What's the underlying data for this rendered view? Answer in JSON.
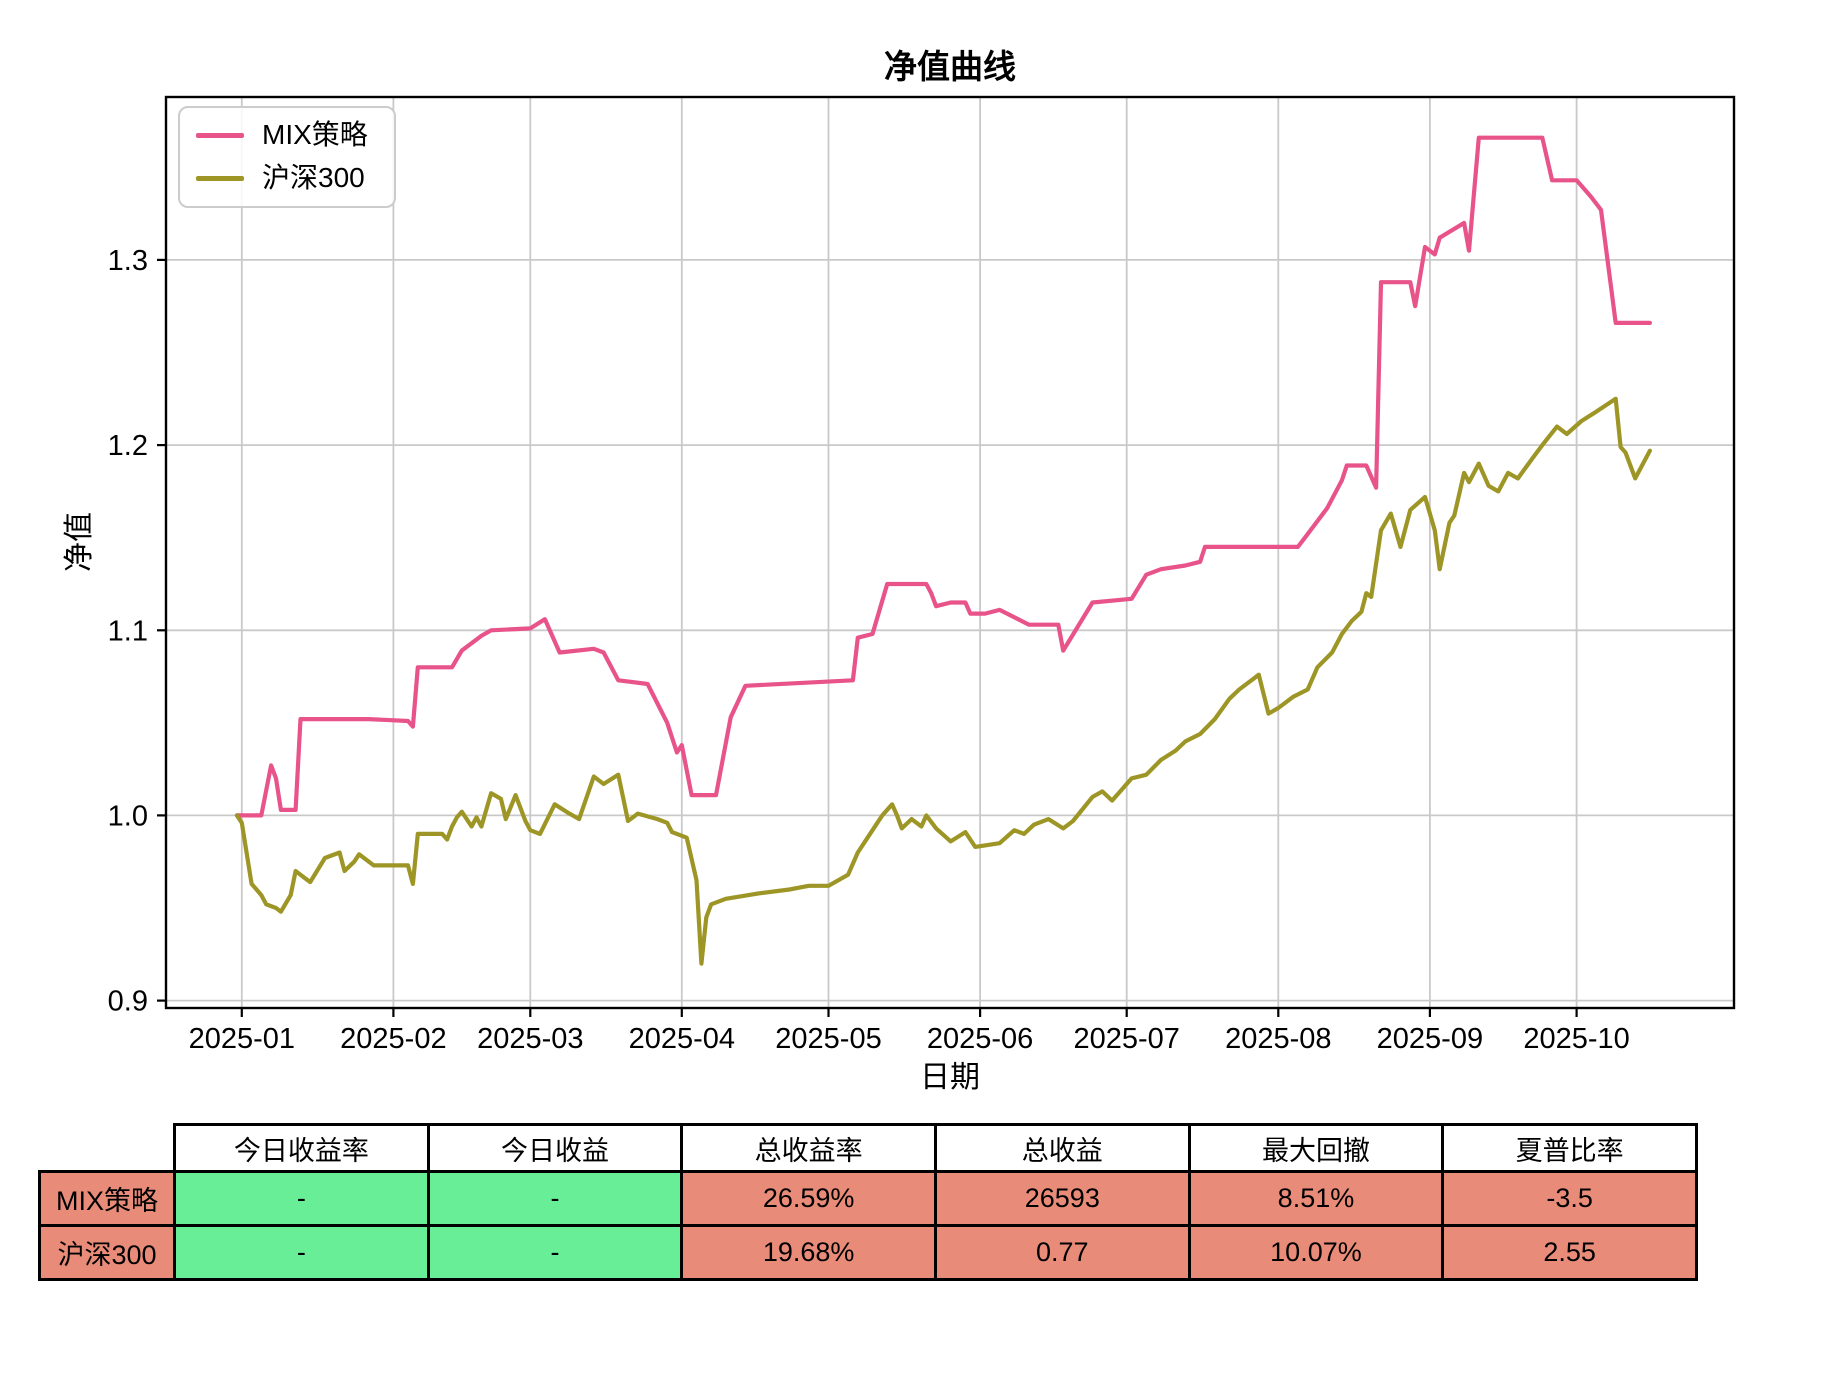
{
  "chart": {
    "title": "净值曲线",
    "xlabel": "日期",
    "ylabel": "净值"
  },
  "chart_data": {
    "type": "line",
    "title": "净值曲线",
    "xlabel": "日期",
    "ylabel": "净值",
    "grid": true,
    "legend_position": "upper left",
    "x_unit": "days since 2024-12-31",
    "xlim": [
      -14.5,
      306.2
    ],
    "ylim": [
      0.896,
      1.388
    ],
    "y_ticks": [
      0.9,
      1.0,
      1.1,
      1.2,
      1.3
    ],
    "x_ticks": {
      "days": [
        1,
        32,
        60,
        91,
        121,
        152,
        182,
        213,
        244,
        274
      ],
      "labels": [
        "2025-01",
        "2025-02",
        "2025-03",
        "2025-04",
        "2025-05",
        "2025-06",
        "2025-07",
        "2025-08",
        "2025-09",
        "2025-10"
      ]
    },
    "series": [
      {
        "name": "MIX策略",
        "color": "#e8538a",
        "points": [
          [
            0,
            1.0
          ],
          [
            5,
            1.0
          ],
          [
            7,
            1.027
          ],
          [
            8,
            1.02
          ],
          [
            9,
            1.003
          ],
          [
            12,
            1.003
          ],
          [
            13,
            1.052
          ],
          [
            27,
            1.052
          ],
          [
            35,
            1.051
          ],
          [
            36,
            1.048
          ],
          [
            37,
            1.08
          ],
          [
            44,
            1.08
          ],
          [
            46,
            1.089
          ],
          [
            50,
            1.097
          ],
          [
            52,
            1.1
          ],
          [
            60,
            1.101
          ],
          [
            63,
            1.106
          ],
          [
            66,
            1.088
          ],
          [
            73,
            1.09
          ],
          [
            75,
            1.088
          ],
          [
            78,
            1.073
          ],
          [
            84,
            1.071
          ],
          [
            88,
            1.05
          ],
          [
            90,
            1.034
          ],
          [
            91,
            1.038
          ],
          [
            93,
            1.011
          ],
          [
            98,
            1.011
          ],
          [
            101,
            1.053
          ],
          [
            104,
            1.07
          ],
          [
            126,
            1.073
          ],
          [
            127,
            1.096
          ],
          [
            130,
            1.098
          ],
          [
            133,
            1.125
          ],
          [
            141,
            1.125
          ],
          [
            142,
            1.12
          ],
          [
            143,
            1.113
          ],
          [
            146,
            1.115
          ],
          [
            149,
            1.115
          ],
          [
            150,
            1.109
          ],
          [
            153,
            1.109
          ],
          [
            156,
            1.111
          ],
          [
            162,
            1.103
          ],
          [
            168,
            1.103
          ],
          [
            169,
            1.089
          ],
          [
            175,
            1.115
          ],
          [
            183,
            1.117
          ],
          [
            186,
            1.13
          ],
          [
            189,
            1.133
          ],
          [
            194,
            1.135
          ],
          [
            197,
            1.137
          ],
          [
            198,
            1.145
          ],
          [
            217,
            1.145
          ],
          [
            219,
            1.152
          ],
          [
            223,
            1.166
          ],
          [
            226,
            1.181
          ],
          [
            227,
            1.189
          ],
          [
            231,
            1.189
          ],
          [
            233,
            1.177
          ],
          [
            234,
            1.288
          ],
          [
            240,
            1.288
          ],
          [
            241,
            1.275
          ],
          [
            243,
            1.307
          ],
          [
            245,
            1.303
          ],
          [
            246,
            1.312
          ],
          [
            251,
            1.32
          ],
          [
            252,
            1.305
          ],
          [
            254,
            1.366
          ],
          [
            267,
            1.366
          ],
          [
            269,
            1.343
          ],
          [
            274,
            1.343
          ],
          [
            277,
            1.334
          ],
          [
            279,
            1.327
          ],
          [
            282,
            1.266
          ],
          [
            289,
            1.266
          ]
        ]
      },
      {
        "name": "沪深300",
        "color": "#9d9627",
        "points": [
          [
            0,
            1.0
          ],
          [
            1,
            0.996
          ],
          [
            3,
            0.963
          ],
          [
            4,
            0.96
          ],
          [
            5,
            0.957
          ],
          [
            6,
            0.952
          ],
          [
            8,
            0.95
          ],
          [
            9,
            0.948
          ],
          [
            11,
            0.957
          ],
          [
            12,
            0.97
          ],
          [
            14,
            0.966
          ],
          [
            15,
            0.964
          ],
          [
            18,
            0.977
          ],
          [
            21,
            0.98
          ],
          [
            22,
            0.97
          ],
          [
            24,
            0.975
          ],
          [
            25,
            0.979
          ],
          [
            28,
            0.973
          ],
          [
            35,
            0.973
          ],
          [
            36,
            0.963
          ],
          [
            37,
            0.99
          ],
          [
            42,
            0.99
          ],
          [
            43,
            0.987
          ],
          [
            44,
            0.994
          ],
          [
            45,
            0.999
          ],
          [
            46,
            1.002
          ],
          [
            48,
            0.994
          ],
          [
            49,
            0.999
          ],
          [
            50,
            0.994
          ],
          [
            52,
            1.012
          ],
          [
            54,
            1.009
          ],
          [
            55,
            0.998
          ],
          [
            57,
            1.011
          ],
          [
            59,
            0.997
          ],
          [
            60,
            0.992
          ],
          [
            62,
            0.99
          ],
          [
            65,
            1.006
          ],
          [
            68,
            1.001
          ],
          [
            70,
            0.998
          ],
          [
            73,
            1.021
          ],
          [
            75,
            1.017
          ],
          [
            78,
            1.022
          ],
          [
            80,
            0.997
          ],
          [
            82,
            1.001
          ],
          [
            86,
            0.998
          ],
          [
            88,
            0.996
          ],
          [
            89,
            0.991
          ],
          [
            92,
            0.988
          ],
          [
            94,
            0.965
          ],
          [
            95,
            0.92
          ],
          [
            96,
            0.945
          ],
          [
            97,
            0.952
          ],
          [
            100,
            0.955
          ],
          [
            107,
            0.958
          ],
          [
            113,
            0.96
          ],
          [
            117,
            0.962
          ],
          [
            121,
            0.962
          ],
          [
            125,
            0.968
          ],
          [
            127,
            0.98
          ],
          [
            130,
            0.992
          ],
          [
            132,
            1.0
          ],
          [
            134,
            1.006
          ],
          [
            135,
            1.0
          ],
          [
            136,
            0.993
          ],
          [
            138,
            0.998
          ],
          [
            140,
            0.994
          ],
          [
            141,
            1.0
          ],
          [
            143,
            0.993
          ],
          [
            146,
            0.986
          ],
          [
            149,
            0.991
          ],
          [
            151,
            0.983
          ],
          [
            156,
            0.985
          ],
          [
            159,
            0.992
          ],
          [
            161,
            0.99
          ],
          [
            163,
            0.995
          ],
          [
            166,
            0.998
          ],
          [
            169,
            0.993
          ],
          [
            171,
            0.997
          ],
          [
            175,
            1.01
          ],
          [
            177,
            1.013
          ],
          [
            179,
            1.008
          ],
          [
            183,
            1.02
          ],
          [
            186,
            1.022
          ],
          [
            189,
            1.03
          ],
          [
            192,
            1.035
          ],
          [
            194,
            1.04
          ],
          [
            197,
            1.044
          ],
          [
            200,
            1.052
          ],
          [
            203,
            1.063
          ],
          [
            205,
            1.068
          ],
          [
            208,
            1.074
          ],
          [
            209,
            1.076
          ],
          [
            211,
            1.055
          ],
          [
            213,
            1.058
          ],
          [
            216,
            1.064
          ],
          [
            219,
            1.068
          ],
          [
            221,
            1.08
          ],
          [
            224,
            1.088
          ],
          [
            226,
            1.098
          ],
          [
            228,
            1.105
          ],
          [
            230,
            1.11
          ],
          [
            231,
            1.12
          ],
          [
            232,
            1.118
          ],
          [
            234,
            1.154
          ],
          [
            236,
            1.163
          ],
          [
            238,
            1.145
          ],
          [
            240,
            1.165
          ],
          [
            243,
            1.172
          ],
          [
            245,
            1.154
          ],
          [
            246,
            1.133
          ],
          [
            248,
            1.158
          ],
          [
            249,
            1.162
          ],
          [
            251,
            1.185
          ],
          [
            252,
            1.18
          ],
          [
            254,
            1.19
          ],
          [
            256,
            1.178
          ],
          [
            258,
            1.175
          ],
          [
            260,
            1.185
          ],
          [
            262,
            1.182
          ],
          [
            265,
            1.193
          ],
          [
            267,
            1.2
          ],
          [
            270,
            1.21
          ],
          [
            272,
            1.206
          ],
          [
            275,
            1.213
          ],
          [
            278,
            1.218
          ],
          [
            282,
            1.225
          ],
          [
            283,
            1.199
          ],
          [
            284,
            1.196
          ],
          [
            286,
            1.182
          ],
          [
            289,
            1.197
          ]
        ]
      }
    ]
  },
  "table": {
    "headers": [
      "今日收益率",
      "今日收益",
      "总收益率",
      "总收益",
      "最大回撤",
      "夏普比率"
    ],
    "column_colors": [
      "green",
      "green",
      "salmon",
      "salmon",
      "salmon",
      "salmon"
    ],
    "rows": [
      {
        "label": "MIX策略",
        "values": [
          "-",
          "-",
          "26.59%",
          "26593",
          "8.51%",
          "-3.5"
        ]
      },
      {
        "label": "沪深300",
        "values": [
          "-",
          "-",
          "19.68%",
          "0.77",
          "10.07%",
          "2.55"
        ]
      }
    ]
  },
  "colors": {
    "mix_line": "#e8538a",
    "hs300_line": "#9d9627",
    "grid": "#c9c9c9",
    "axis": "#000000",
    "table_green": "#67ee96",
    "table_salmon": "#e98b79"
  }
}
